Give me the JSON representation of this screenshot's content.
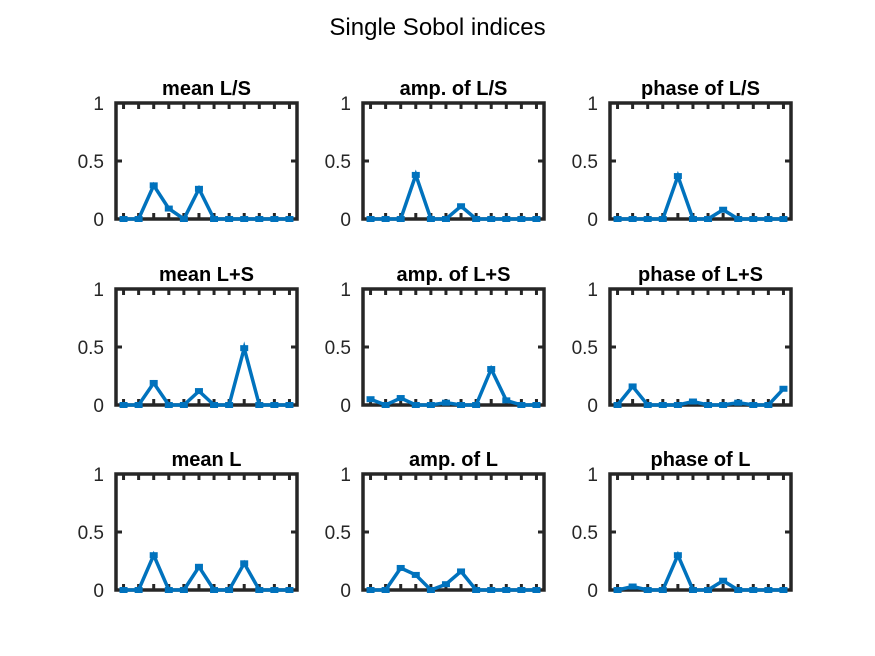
{
  "figure_title": "Single Sobol indices",
  "colors": {
    "series": "#0072BD",
    "axes": "#262626",
    "background": "#ffffff"
  },
  "chart_data": [
    {
      "type": "line",
      "title": "mean L/S",
      "ylim": [
        0,
        1
      ],
      "yticks": [
        "0",
        "0.5",
        "1"
      ],
      "grid": false,
      "x": [
        1,
        2,
        3,
        4,
        5,
        6,
        7,
        8,
        9,
        10,
        11,
        12
      ],
      "values": [
        0,
        0,
        0.29,
        0.09,
        0,
        0.26,
        0,
        0,
        0,
        0,
        0,
        0
      ]
    },
    {
      "type": "line",
      "title": "amp. of L/S",
      "ylim": [
        0,
        1
      ],
      "yticks": [
        "0",
        "0.5",
        "1"
      ],
      "grid": false,
      "x": [
        1,
        2,
        3,
        4,
        5,
        6,
        7,
        8,
        9,
        10,
        11,
        12
      ],
      "values": [
        0,
        0,
        0,
        0.38,
        0,
        0,
        0.11,
        0,
        0,
        0,
        0,
        0
      ]
    },
    {
      "type": "line",
      "title": "phase of L/S",
      "ylim": [
        0,
        1
      ],
      "yticks": [
        "0",
        "0.5",
        "1"
      ],
      "grid": false,
      "x": [
        1,
        2,
        3,
        4,
        5,
        6,
        7,
        8,
        9,
        10,
        11,
        12
      ],
      "values": [
        0,
        0,
        0,
        0,
        0.37,
        0,
        0,
        0.08,
        0,
        0,
        0,
        0
      ]
    },
    {
      "type": "line",
      "title": "mean L+S",
      "ylim": [
        0,
        1
      ],
      "yticks": [
        "0",
        "0.5",
        "1"
      ],
      "grid": false,
      "x": [
        1,
        2,
        3,
        4,
        5,
        6,
        7,
        8,
        9,
        10,
        11,
        12
      ],
      "values": [
        0,
        0,
        0.19,
        0,
        0,
        0.12,
        0,
        0,
        0.49,
        0,
        0,
        0
      ]
    },
    {
      "type": "line",
      "title": "amp. of L+S",
      "ylim": [
        0,
        1
      ],
      "yticks": [
        "0",
        "0.5",
        "1"
      ],
      "grid": false,
      "x": [
        1,
        2,
        3,
        4,
        5,
        6,
        7,
        8,
        9,
        10,
        11,
        12
      ],
      "values": [
        0.05,
        0,
        0.06,
        0,
        0,
        0.02,
        0,
        0,
        0.31,
        0.04,
        0,
        0
      ]
    },
    {
      "type": "line",
      "title": "phase of L+S",
      "ylim": [
        0,
        1
      ],
      "yticks": [
        "0",
        "0.5",
        "1"
      ],
      "grid": false,
      "x": [
        1,
        2,
        3,
        4,
        5,
        6,
        7,
        8,
        9,
        10,
        11,
        12
      ],
      "values": [
        0,
        0.16,
        0,
        0,
        0,
        0.03,
        0,
        0,
        0.02,
        0,
        0,
        0.14
      ]
    },
    {
      "type": "line",
      "title": "mean L",
      "ylim": [
        0,
        1
      ],
      "yticks": [
        "0",
        "0.5",
        "1"
      ],
      "grid": false,
      "x": [
        1,
        2,
        3,
        4,
        5,
        6,
        7,
        8,
        9,
        10,
        11,
        12
      ],
      "values": [
        0,
        0,
        0.3,
        0,
        0,
        0.2,
        0,
        0,
        0.23,
        0,
        0,
        0
      ]
    },
    {
      "type": "line",
      "title": "amp. of L",
      "ylim": [
        0,
        1
      ],
      "yticks": [
        "0",
        "0.5",
        "1"
      ],
      "grid": false,
      "x": [
        1,
        2,
        3,
        4,
        5,
        6,
        7,
        8,
        9,
        10,
        11,
        12
      ],
      "values": [
        0,
        0,
        0.19,
        0.13,
        0,
        0.05,
        0.16,
        0,
        0,
        0,
        0,
        0
      ]
    },
    {
      "type": "line",
      "title": "phase of L",
      "ylim": [
        0,
        1
      ],
      "yticks": [
        "0",
        "0.5",
        "1"
      ],
      "grid": false,
      "x": [
        1,
        2,
        3,
        4,
        5,
        6,
        7,
        8,
        9,
        10,
        11,
        12
      ],
      "values": [
        0,
        0.03,
        0,
        0,
        0.3,
        0,
        0,
        0.08,
        0,
        0,
        0,
        0
      ]
    }
  ]
}
